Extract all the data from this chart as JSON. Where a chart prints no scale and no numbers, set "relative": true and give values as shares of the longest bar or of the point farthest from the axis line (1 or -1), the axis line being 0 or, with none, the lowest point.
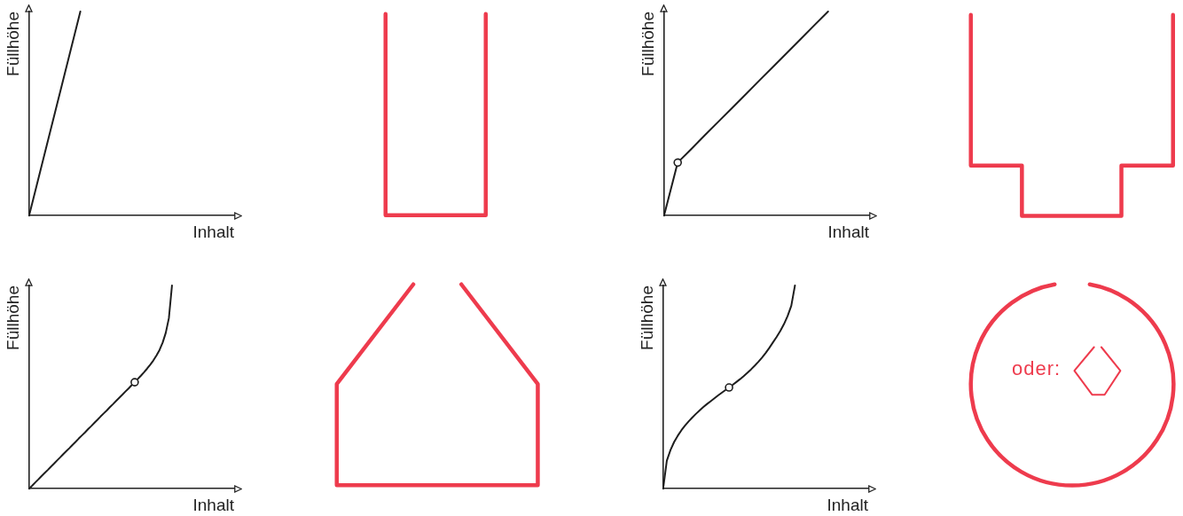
{
  "chart_data": [
    {
      "type": "line",
      "xlabel": "Inhalt",
      "ylabel": "Füllhöhe",
      "relative": true,
      "tick_labels": false,
      "categories": [
        null,
        null,
        null,
        null,
        null
      ],
      "series": [
        {
          "color": "#1e1e1e",
          "values": [
            0,
            1,
            null,
            null,
            null
          ]
        }
      ]
    },
    {
      "type": "line",
      "xlabel": "Inhalt",
      "ylabel": "Füllhöhe",
      "relative": true,
      "tick_labels": false,
      "categories": [
        null,
        null,
        null,
        null,
        null,
        null,
        null,
        null,
        null,
        null,
        null,
        null,
        null,
        null,
        null,
        null
      ],
      "series": [
        {
          "color": "#1e1e1e",
          "values": [
            0,
            0.26,
            0.327,
            0.395,
            0.462,
            0.529,
            0.596,
            0.664,
            0.731,
            0.798,
            0.865,
            0.933,
            1,
            null,
            null,
            null
          ]
        },
        {
          "marker": "circle",
          "color": "#1e1e1e",
          "values": [
            null,
            0.26,
            null,
            null,
            null,
            null,
            null,
            null,
            null,
            null,
            null,
            null,
            null,
            null,
            null,
            null
          ]
        }
      ]
    },
    {
      "type": "line",
      "xlabel": "Inhalt",
      "ylabel": "Füllhöhe",
      "relative": true,
      "tick_labels": false,
      "categories": [
        null,
        null,
        null,
        null,
        null,
        null,
        null,
        null,
        null,
        null,
        null,
        null,
        null,
        null,
        null,
        null,
        null,
        null,
        null,
        null,
        null,
        null,
        null,
        null,
        null,
        null,
        null,
        null,
        null,
        null,
        null,
        null,
        null,
        null,
        null,
        null,
        null,
        null,
        null,
        null,
        null,
        null,
        null,
        null,
        null,
        null,
        null,
        null,
        null,
        null,
        null,
        null,
        null,
        null,
        null,
        null,
        null,
        null,
        null,
        null,
        null,
        null,
        null,
        null,
        null,
        null,
        null
      ],
      "series": [
        {
          "color": "#1e1e1e",
          "values": [
            0,
            0.015,
            0.031,
            0.046,
            0.062,
            0.077,
            0.092,
            0.108,
            0.123,
            0.139,
            0.154,
            0.17,
            0.185,
            0.2,
            0.216,
            0.231,
            0.247,
            0.262,
            0.277,
            0.293,
            0.308,
            0.324,
            0.339,
            0.355,
            0.37,
            0.385,
            0.401,
            0.416,
            0.432,
            0.447,
            0.462,
            0.478,
            0.493,
            0.509,
            0.524,
            0.54,
            0.556,
            0.573,
            0.591,
            0.61,
            0.631,
            0.655,
            0.683,
            0.719,
            0.767,
            0.839,
            1,
            null,
            null,
            null,
            null,
            null,
            null,
            null,
            null,
            null,
            null,
            null,
            null,
            null,
            null,
            null,
            null,
            null,
            null,
            null,
            null
          ]
        },
        {
          "marker": "circle",
          "color": "#1e1e1e",
          "values": [
            null,
            null,
            null,
            null,
            null,
            null,
            null,
            null,
            null,
            null,
            null,
            null,
            null,
            null,
            null,
            null,
            null,
            null,
            null,
            null,
            null,
            null,
            null,
            null,
            null,
            null,
            null,
            null,
            null,
            null,
            null,
            null,
            null,
            null,
            0.524,
            null,
            null,
            null,
            null,
            null,
            null,
            null,
            null,
            null,
            null,
            null,
            null,
            null,
            null,
            null,
            null,
            null,
            null,
            null,
            null,
            null,
            null,
            null,
            null,
            null,
            null,
            null,
            null,
            null,
            null,
            null,
            null
          ]
        }
      ]
    },
    {
      "type": "line",
      "xlabel": "Inhalt",
      "ylabel": "Füllhöhe",
      "relative": true,
      "tick_labels": false,
      "annotations": [
        "oder:"
      ],
      "categories": [
        null,
        null,
        null,
        null,
        null,
        null,
        null,
        null,
        null,
        null,
        null,
        null,
        null,
        null,
        null,
        null,
        null,
        null,
        null,
        null,
        null,
        null,
        null,
        null,
        null,
        null,
        null,
        null,
        null,
        null,
        null,
        null,
        null,
        null,
        null,
        null,
        null,
        null,
        null,
        null,
        null,
        null,
        null,
        null,
        null,
        null,
        null,
        null,
        null,
        null,
        null,
        null,
        null,
        null,
        null,
        null,
        null
      ],
      "series": [
        {
          "color": "#1e1e1e",
          "values": [
            0,
            0.138,
            0.19,
            0.23,
            0.261,
            0.288,
            0.311,
            0.332,
            0.351,
            0.369,
            0.386,
            0.402,
            0.417,
            0.431,
            0.445,
            0.459,
            0.472,
            0.485,
            0.498,
            0.511,
            0.525,
            0.539,
            0.554,
            0.57,
            0.587,
            0.605,
            0.624,
            0.645,
            0.668,
            0.693,
            0.72,
            0.747,
            0.776,
            0.81,
            0.85,
            0.9,
            1,
            null,
            null,
            null,
            null,
            null,
            null,
            null,
            null,
            null,
            null,
            null,
            null,
            null,
            null,
            null,
            null,
            null,
            null,
            null,
            null
          ]
        },
        {
          "marker": "circle",
          "color": "#1e1e1e",
          "values": [
            null,
            null,
            null,
            null,
            null,
            null,
            null,
            null,
            null,
            null,
            null,
            null,
            null,
            null,
            null,
            null,
            null,
            null,
            0.498,
            null,
            null,
            null,
            null,
            null,
            null,
            null,
            null,
            null,
            null,
            null,
            null,
            null,
            null,
            null,
            null,
            null,
            null,
            null,
            null,
            null,
            null,
            null,
            null,
            null,
            null,
            null,
            null,
            null,
            null,
            null,
            null,
            null,
            null,
            null,
            null,
            null,
            null
          ]
        }
      ]
    }
  ]
}
